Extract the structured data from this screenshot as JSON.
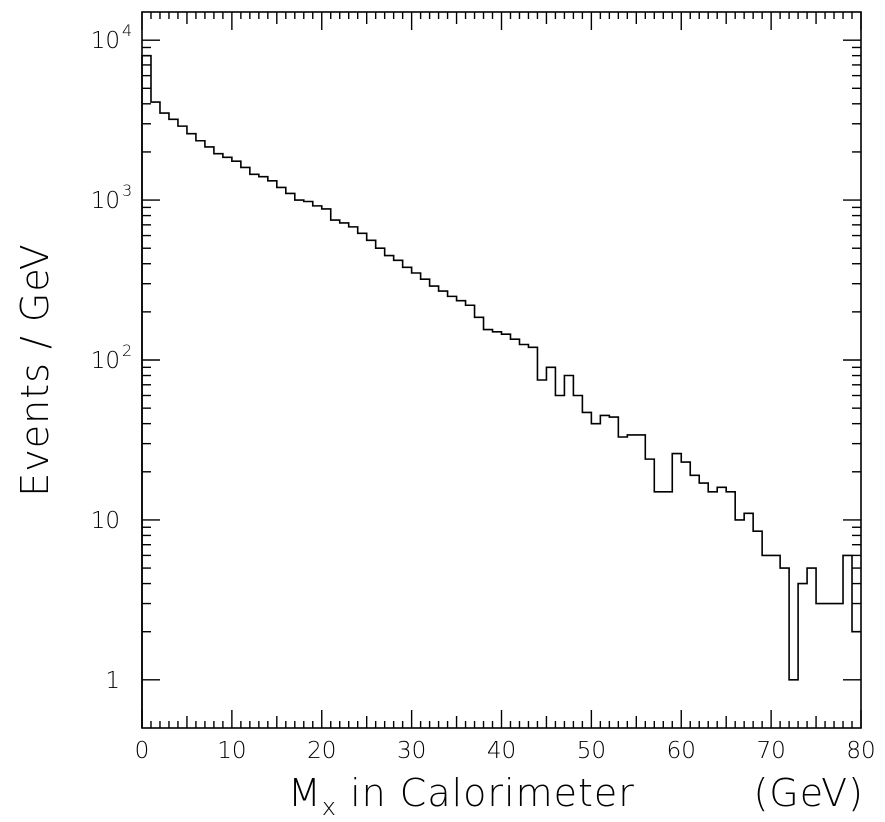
{
  "chart_data": {
    "type": "histogram",
    "title": "",
    "xlabel_main": "M",
    "xlabel_sub": "x",
    "xlabel_rest": " in Calorimeter",
    "xlabel_unit": "(GeV)",
    "ylabel": "Events / GeV",
    "xlim": [
      0,
      80
    ],
    "ylim": [
      0.5,
      15000
    ],
    "yscale": "log",
    "grid": false,
    "bin_width": 1,
    "x_tick_labels": [
      "0",
      "10",
      "20",
      "30",
      "40",
      "50",
      "60",
      "70",
      "80"
    ],
    "y_tick_labels": [
      {
        "value": 10000,
        "base": "10",
        "exp": "4"
      },
      {
        "value": 1000,
        "base": "10",
        "exp": "3"
      },
      {
        "value": 100,
        "base": "10",
        "exp": "2"
      },
      {
        "value": 10,
        "base": "10",
        "exp": ""
      },
      {
        "value": 1,
        "base": "1",
        "exp": ""
      }
    ],
    "bin_values": [
      8000,
      4100,
      3500,
      3200,
      2900,
      2600,
      2350,
      2150,
      1950,
      1850,
      1750,
      1600,
      1450,
      1400,
      1320,
      1200,
      1100,
      1000,
      980,
      920,
      880,
      750,
      720,
      680,
      620,
      560,
      500,
      450,
      420,
      380,
      350,
      320,
      290,
      270,
      250,
      235,
      220,
      185,
      155,
      150,
      145,
      135,
      125,
      120,
      75,
      90,
      60,
      80,
      60,
      47,
      40,
      45,
      44,
      33,
      34,
      34,
      24,
      15,
      15,
      26,
      23,
      19,
      17,
      15,
      16,
      15,
      10,
      11,
      8.5,
      6,
      6,
      5,
      1,
      4,
      5,
      3,
      3,
      3,
      6,
      2
    ]
  }
}
